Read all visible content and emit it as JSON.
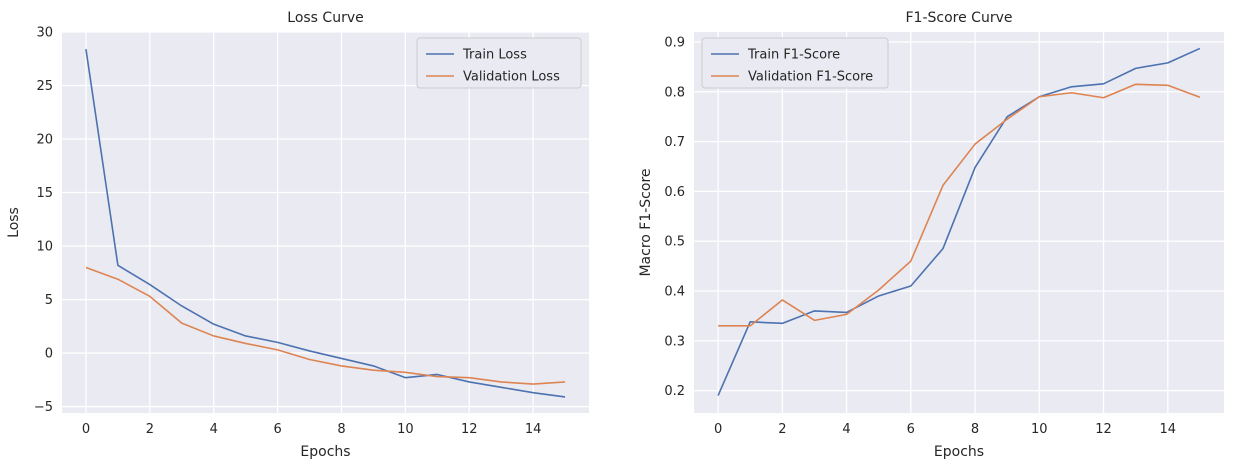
{
  "style": {
    "panel_bg": "#eaeaf2",
    "grid_color": "#ffffff",
    "train_color": "#4c72b0",
    "val_color": "#dd8452"
  },
  "chart_data": [
    {
      "type": "line",
      "title": "Loss Curve",
      "xlabel": "Epochs",
      "ylabel": "Loss",
      "x": [
        0,
        1,
        2,
        3,
        4,
        5,
        6,
        7,
        8,
        9,
        10,
        11,
        12,
        13,
        14,
        15
      ],
      "xlim": [
        -0.75,
        15.75
      ],
      "ylim": [
        -5.6,
        30
      ],
      "xticks": [
        0,
        2,
        4,
        6,
        8,
        10,
        12,
        14
      ],
      "yticks": [
        -5,
        0,
        5,
        10,
        15,
        20,
        25,
        30
      ],
      "grid": true,
      "legend": "top-right",
      "series": [
        {
          "name": "Train Loss",
          "color": "#4c72b0",
          "values": [
            28.4,
            8.2,
            6.4,
            4.4,
            2.7,
            1.6,
            1.0,
            0.2,
            -0.5,
            -1.2,
            -2.3,
            -2.0,
            -2.7,
            -3.2,
            -3.7,
            -4.1
          ]
        },
        {
          "name": "Validation Loss",
          "color": "#dd8452",
          "values": [
            8.0,
            6.9,
            5.3,
            2.8,
            1.6,
            0.9,
            0.3,
            -0.6,
            -1.2,
            -1.6,
            -1.8,
            -2.2,
            -2.3,
            -2.7,
            -2.9,
            -2.7
          ]
        }
      ]
    },
    {
      "type": "line",
      "title": "F1-Score Curve",
      "xlabel": "Epochs",
      "ylabel": "Macro F1-Score",
      "x": [
        0,
        1,
        2,
        3,
        4,
        5,
        6,
        7,
        8,
        9,
        10,
        11,
        12,
        13,
        14,
        15
      ],
      "xlim": [
        -0.75,
        15.75
      ],
      "ylim": [
        0.155,
        0.92
      ],
      "xticks": [
        0,
        2,
        4,
        6,
        8,
        10,
        12,
        14
      ],
      "yticks": [
        0.2,
        0.3,
        0.4,
        0.5,
        0.6,
        0.7,
        0.8,
        0.9
      ],
      "grid": true,
      "legend": "top-left",
      "series": [
        {
          "name": "Train F1-Score",
          "color": "#4c72b0",
          "values": [
            0.19,
            0.338,
            0.335,
            0.36,
            0.357,
            0.39,
            0.41,
            0.485,
            0.648,
            0.75,
            0.79,
            0.81,
            0.816,
            0.847,
            0.858,
            0.887
          ]
        },
        {
          "name": "Validation F1-Score",
          "color": "#dd8452",
          "values": [
            0.33,
            0.33,
            0.382,
            0.341,
            0.353,
            0.402,
            0.46,
            0.612,
            0.695,
            0.745,
            0.79,
            0.798,
            0.788,
            0.815,
            0.813,
            0.789
          ]
        }
      ]
    }
  ]
}
